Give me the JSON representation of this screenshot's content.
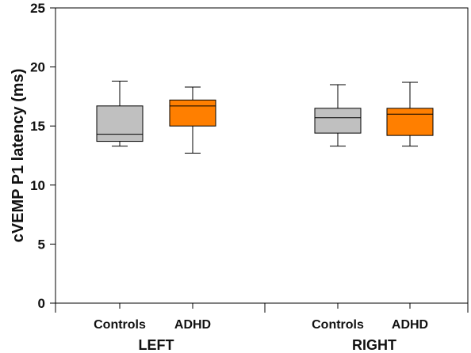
{
  "chart_data": {
    "type": "box",
    "ylabel": "cVEMP P1 latency (ms)",
    "ylim": [
      0,
      25
    ],
    "yticks": [
      "0",
      "5",
      "10",
      "15",
      "20",
      "25"
    ],
    "groups": [
      "LEFT",
      "RIGHT"
    ],
    "categories": [
      "Controls",
      "ADHD",
      "Controls",
      "ADHD"
    ],
    "group_of_category": [
      0,
      0,
      1,
      1
    ],
    "series": [
      {
        "name": "Controls",
        "color": "#c0c0c0"
      },
      {
        "name": "ADHD",
        "color": "#ff7f00"
      }
    ],
    "boxes": [
      {
        "group": "LEFT",
        "category": "Controls",
        "whisker_low": 13.3,
        "q1": 13.7,
        "median": 14.3,
        "q3": 16.7,
        "whisker_high": 18.8,
        "color": "#c0c0c0"
      },
      {
        "group": "LEFT",
        "category": "ADHD",
        "whisker_low": 12.7,
        "q1": 15.0,
        "median": 16.7,
        "q3": 17.2,
        "whisker_high": 18.3,
        "color": "#ff7f00"
      },
      {
        "group": "RIGHT",
        "category": "Controls",
        "whisker_low": 13.3,
        "q1": 14.4,
        "median": 15.7,
        "q3": 16.5,
        "whisker_high": 18.5,
        "color": "#c0c0c0"
      },
      {
        "group": "RIGHT",
        "category": "ADHD",
        "whisker_low": 13.3,
        "q1": 14.2,
        "median": 16.0,
        "q3": 16.5,
        "whisker_high": 18.7,
        "color": "#ff7f00"
      }
    ],
    "grid": false,
    "legend": "none"
  }
}
